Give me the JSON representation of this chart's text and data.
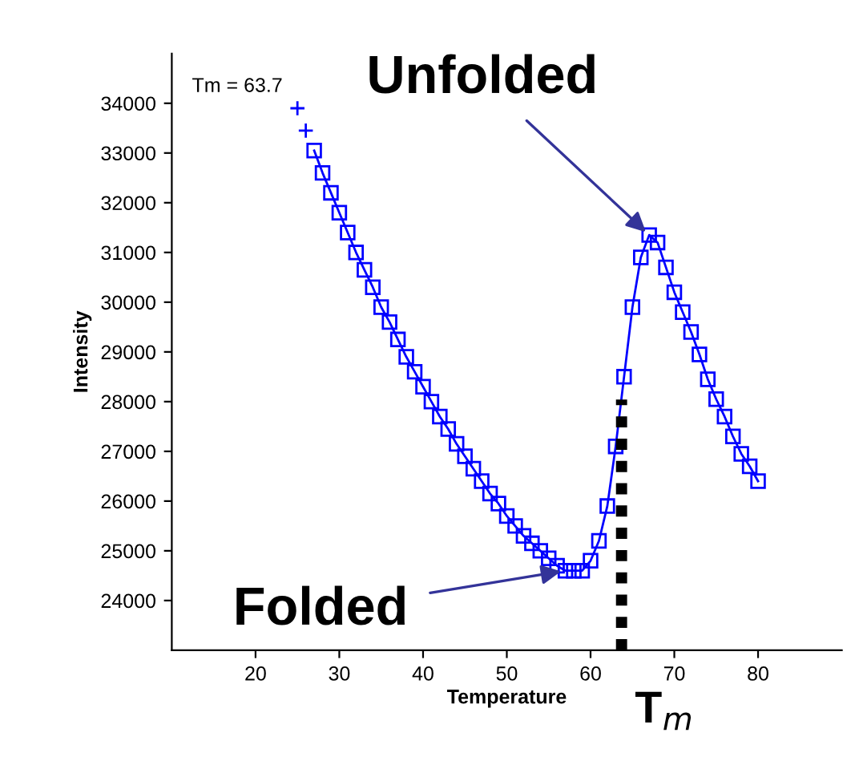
{
  "chart_data": {
    "type": "line",
    "xlabel": "Temperature",
    "ylabel": "Intensity",
    "series": [
      {
        "type": "scatter",
        "marker": "cross",
        "color": "#0000ff",
        "x": [
          25,
          26
        ],
        "values": [
          33900,
          33450
        ]
      },
      {
        "marker": "square",
        "line_style": "solid",
        "color": "#0000ff",
        "x": [
          27,
          28,
          29,
          30,
          31,
          32,
          33,
          34,
          35,
          36,
          37,
          38,
          39,
          40,
          41,
          42,
          43,
          44,
          45,
          46,
          47,
          48,
          49,
          50,
          51,
          52,
          53,
          54,
          55,
          56,
          57,
          58,
          59,
          60,
          61,
          62,
          63,
          64,
          65,
          66,
          67,
          68,
          69,
          70,
          71,
          72,
          73,
          74,
          75,
          76,
          77,
          78,
          79,
          80
        ],
        "values": [
          33050,
          32600,
          32200,
          31800,
          31400,
          31000,
          30650,
          30300,
          29900,
          29600,
          29250,
          28900,
          28600,
          28300,
          28000,
          27700,
          27450,
          27150,
          26900,
          26650,
          26400,
          26150,
          25950,
          25700,
          25500,
          25300,
          25150,
          25000,
          24850,
          24700,
          24600,
          24600,
          24600,
          24800,
          25200,
          25900,
          27100,
          28500,
          29900,
          30900,
          31350,
          31200,
          30700,
          30200,
          29800,
          29400,
          28950,
          28450,
          28050,
          27700,
          27300,
          26950,
          26700,
          26400
        ]
      }
    ],
    "xlim": [
      10,
      90
    ],
    "xticks": [
      20,
      30,
      40,
      50,
      60,
      70,
      80
    ],
    "ylim": [
      23000,
      35000
    ],
    "yticks": [
      24000,
      25000,
      26000,
      27000,
      28000,
      29000,
      30000,
      31000,
      32000,
      33000,
      34000
    ],
    "grid": false,
    "ref_lines": [
      {
        "axis": "x",
        "value": 63.7,
        "label": "T$_{m}$",
        "color": "#000000",
        "line_style": "dotted"
      }
    ],
    "annotations": [
      "Tm = 63.7",
      {
        "text": "Unfolded",
        "x": 67,
        "y": 31350
      },
      {
        "text": "Folded",
        "x": 57,
        "y": 24600
      }
    ]
  }
}
